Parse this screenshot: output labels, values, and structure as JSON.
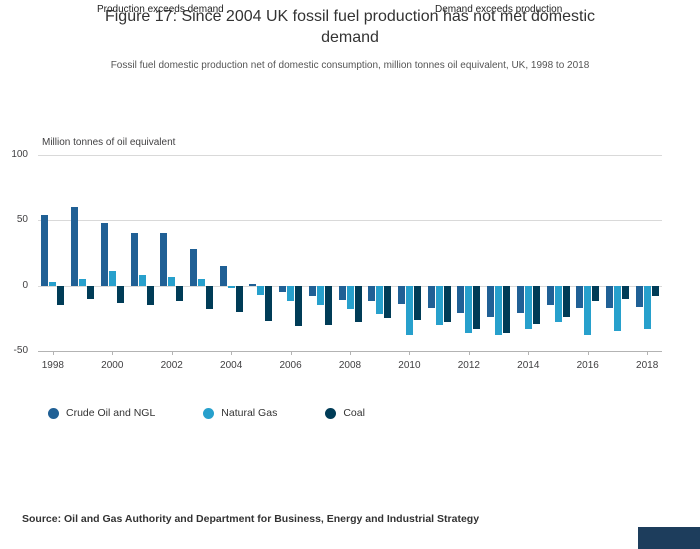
{
  "header": {
    "title": "Figure 17: Since 2004 UK fossil fuel production has not met domestic demand",
    "subtitle": "Fossil fuel domestic production net of domestic consumption, million tonnes oil equivalent, UK, 1998 to 2018"
  },
  "annotations": {
    "left": "Production exceeds demand",
    "right": "Demand exceeds production"
  },
  "footer": {
    "source": "Source: Oil and Gas Authority and Department for Business, Energy and Industrial Strategy"
  },
  "chart_data": {
    "type": "bar",
    "title": "Figure 17: Since 2004 UK fossil fuel production has not met domestic demand",
    "subtitle": "Fossil fuel domestic production net of domestic consumption, million tonnes oil equivalent, UK, 1998 to 2018",
    "ylabel": "Million tonnes of oil equivalent",
    "xlabel": "",
    "ylim": [
      -50,
      100
    ],
    "yticks": [
      100,
      50,
      0,
      -50
    ],
    "grid": "horizontal",
    "legend_position": "bottom",
    "annotations": [
      "Production exceeds demand",
      "Demand exceeds production"
    ],
    "categories": [
      1998,
      1999,
      2000,
      2001,
      2002,
      2003,
      2004,
      2005,
      2006,
      2007,
      2008,
      2009,
      2010,
      2011,
      2012,
      2013,
      2014,
      2015,
      2016,
      2017,
      2018
    ],
    "xticks": [
      1998,
      2000,
      2002,
      2004,
      2006,
      2008,
      2010,
      2012,
      2014,
      2016,
      2018
    ],
    "series": [
      {
        "name": "Crude Oil and NGL",
        "color": "#206095",
        "values": [
          54,
          60,
          48,
          40,
          40,
          28,
          15,
          1,
          -5,
          -8,
          -11,
          -12,
          -14,
          -17,
          -21,
          -24,
          -21,
          -15,
          -17,
          -17,
          -16
        ]
      },
      {
        "name": "Natural Gas",
        "color": "#27a0cc",
        "values": [
          3,
          5,
          11,
          8,
          7,
          5,
          -2,
          -7,
          -12,
          -15,
          -18,
          -22,
          -38,
          -30,
          -36,
          -38,
          -33,
          -28,
          -38,
          -35,
          -33
        ]
      },
      {
        "name": "Coal",
        "color": "#003c57",
        "values": [
          -15,
          -10,
          -13,
          -15,
          -12,
          -18,
          -20,
          -27,
          -31,
          -30,
          -28,
          -25,
          -26,
          -28,
          -33,
          -36,
          -29,
          -24,
          -12,
          -10,
          -8
        ]
      }
    ]
  }
}
